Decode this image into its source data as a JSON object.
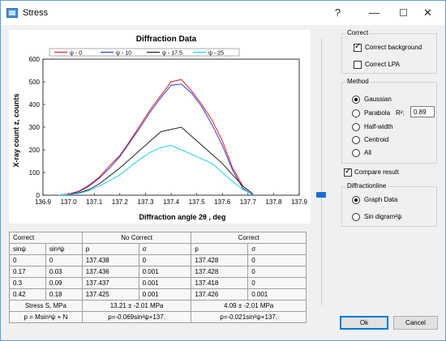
{
  "window": {
    "title": "Stress",
    "help_glyph": "?",
    "minimize_glyph": "—",
    "maximize_glyph": "☐",
    "close_glyph": "✕"
  },
  "chart_data": {
    "type": "line",
    "title": "Diffraction Data",
    "xlabel": "Diffraction angle 2θ , deg",
    "ylabel": "X-ray count z, counts",
    "xlim": [
      136.9,
      137.9
    ],
    "ylim": [
      0,
      600
    ],
    "x_ticks": [
      "136.9",
      "137.0",
      "137.1",
      "137.2",
      "137.3",
      "137.4",
      "137.5",
      "137.6",
      "137.7",
      "137.8",
      "137.9"
    ],
    "y_ticks": [
      "0",
      "100",
      "200",
      "300",
      "400",
      "500",
      "600"
    ],
    "legend_position": "top",
    "x": [
      136.96,
      137.0,
      137.04,
      137.08,
      137.12,
      137.16,
      137.2,
      137.24,
      137.28,
      137.32,
      137.36,
      137.4,
      137.44,
      137.48,
      137.52,
      137.56,
      137.6,
      137.64,
      137.68,
      137.72
    ],
    "series": [
      {
        "name": "ψ - 0",
        "color": "#e0202a",
        "values": [
          0,
          5,
          18,
          45,
          80,
          130,
          175,
          240,
          310,
          380,
          440,
          500,
          510,
          460,
          400,
          330,
          240,
          120,
          40,
          5
        ]
      },
      {
        "name": "ψ - 10",
        "color": "#2f3fc8",
        "values": [
          0,
          3,
          15,
          40,
          75,
          120,
          170,
          235,
          300,
          370,
          430,
          485,
          490,
          450,
          390,
          310,
          220,
          110,
          30,
          0
        ]
      },
      {
        "name": "ψ - 17.5",
        "color": "#222222",
        "values": [
          0,
          2,
          10,
          25,
          50,
          85,
          120,
          160,
          200,
          240,
          280,
          290,
          300,
          260,
          220,
          180,
          140,
          90,
          40,
          5
        ]
      },
      {
        "name": "ψ - 25",
        "color": "#22d0e0",
        "values": [
          0,
          2,
          8,
          20,
          40,
          65,
          90,
          125,
          160,
          190,
          210,
          220,
          200,
          180,
          160,
          140,
          100,
          60,
          25,
          2
        ]
      }
    ]
  },
  "table": {
    "group_headers": [
      "Correct",
      "No Correct",
      "Correct"
    ],
    "col_headers": [
      "sinψ",
      "sin²ψ",
      "p",
      "σ",
      "p",
      "σ"
    ],
    "rows": [
      [
        "0",
        "0",
        "137.438",
        "0",
        "137.428",
        "0"
      ],
      [
        "0.17",
        "0.03",
        "137.436",
        "0.001",
        "137.428",
        "0"
      ],
      [
        "0.3",
        "0.09",
        "137.437",
        "0.001",
        "137.418",
        "0"
      ],
      [
        "0.42",
        "0.18",
        "137.425",
        "0.001",
        "137.426",
        "0.001"
      ]
    ],
    "stress_label": "Stress S, MPa",
    "stress_nocorrect": "13.21 ± -2.01  MPa",
    "stress_correct": "4.09 ± -2.01 MPa",
    "formula_label": "p = Msin²ψ + N",
    "formula_nocorrect": "p=-0.069sin²ψ+137.",
    "formula_correct": "p=-0.021sin²ψ+137."
  },
  "correct_group": {
    "title": "Correct",
    "correct_background": "Correct background",
    "correct_lpa": "Correct LPA"
  },
  "method_group": {
    "title": "Method",
    "options": [
      "Gaussian",
      "Parabola",
      "Half-width",
      "Centroid",
      "All"
    ],
    "selected": "Gaussian",
    "r2_label": "R²:",
    "r2_value": "0.89"
  },
  "compare_result": "Compare result",
  "diffraction_group": {
    "title": "Diffractionline",
    "graph_data": "Graph Data",
    "sin_diagram": "Sin digram²ψ"
  },
  "buttons": {
    "ok": "Ok",
    "cancel": "Cancel"
  }
}
